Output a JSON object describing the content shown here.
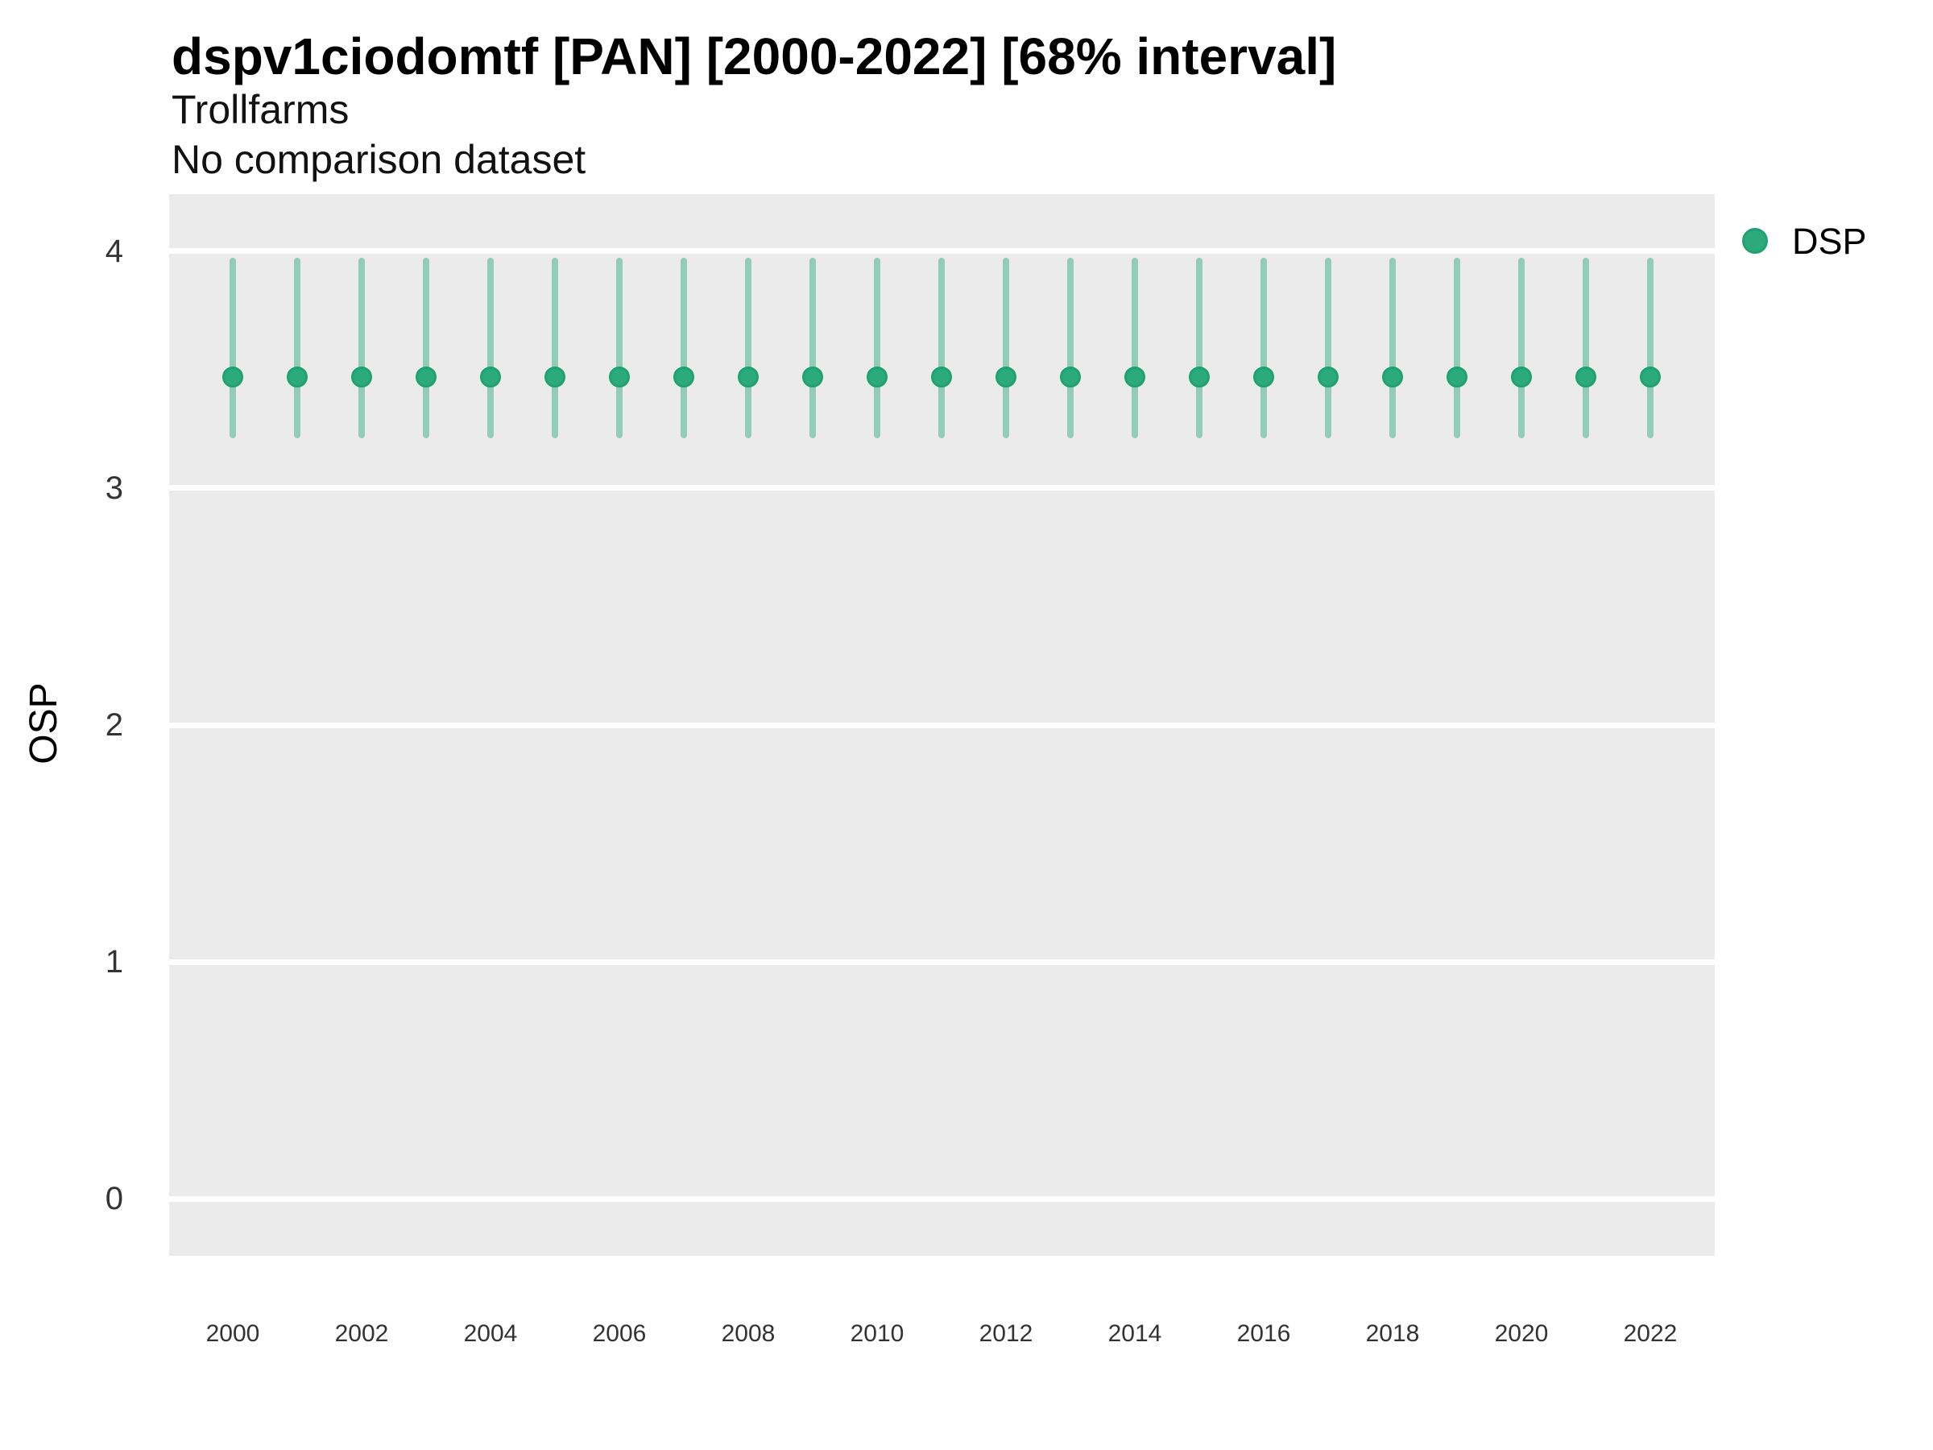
{
  "header": {
    "title": "dspv1ciodomtf [PAN] [2000-2022] [68% interval]",
    "subtitle": "Trollfarms",
    "comparison_note": "No comparison dataset"
  },
  "chart_data": {
    "type": "pointrange",
    "title": "dspv1ciodomtf [PAN] [2000-2022] [68% interval]",
    "subtitle": "Trollfarms",
    "subtitle2": "No comparison dataset",
    "xlabel": "",
    "ylabel": "OSP",
    "interval_label": "68% interval",
    "x": [
      2000,
      2001,
      2002,
      2003,
      2004,
      2005,
      2006,
      2007,
      2008,
      2009,
      2010,
      2011,
      2012,
      2013,
      2014,
      2015,
      2016,
      2017,
      2018,
      2019,
      2020,
      2021,
      2022
    ],
    "series": [
      {
        "name": "DSP",
        "mean": [
          3.47,
          3.47,
          3.47,
          3.47,
          3.47,
          3.47,
          3.47,
          3.47,
          3.47,
          3.47,
          3.47,
          3.47,
          3.47,
          3.47,
          3.47,
          3.47,
          3.47,
          3.47,
          3.47,
          3.47,
          3.47,
          3.47,
          3.47
        ],
        "lower": [
          3.21,
          3.21,
          3.21,
          3.21,
          3.21,
          3.21,
          3.21,
          3.21,
          3.21,
          3.21,
          3.21,
          3.21,
          3.21,
          3.21,
          3.21,
          3.21,
          3.21,
          3.21,
          3.21,
          3.21,
          3.21,
          3.21,
          3.21
        ],
        "upper": [
          3.97,
          3.97,
          3.97,
          3.97,
          3.97,
          3.97,
          3.97,
          3.97,
          3.97,
          3.97,
          3.97,
          3.97,
          3.97,
          3.97,
          3.97,
          3.97,
          3.97,
          3.97,
          3.97,
          3.97,
          3.97,
          3.97,
          3.97
        ]
      }
    ],
    "ylim": [
      -0.24,
      4.24
    ],
    "yticks": [
      0,
      1,
      2,
      3,
      4
    ],
    "xticks": [
      2000,
      2002,
      2004,
      2006,
      2008,
      2010,
      2012,
      2014,
      2016,
      2018,
      2020,
      2022
    ],
    "grid": "major-horizontal-only",
    "legend": {
      "position": "right",
      "entries": [
        {
          "label": "DSP",
          "color": "#2caa7e",
          "edge_color": "#1fa172"
        }
      ]
    },
    "colors": {
      "panel_bg": "#ebebeb",
      "grid": "#ffffff",
      "range_line": "#93ccb8",
      "point_fill": "#2caa7e",
      "point_edge": "#1fa172",
      "axis_text": "#333333",
      "text": "#000000"
    }
  }
}
